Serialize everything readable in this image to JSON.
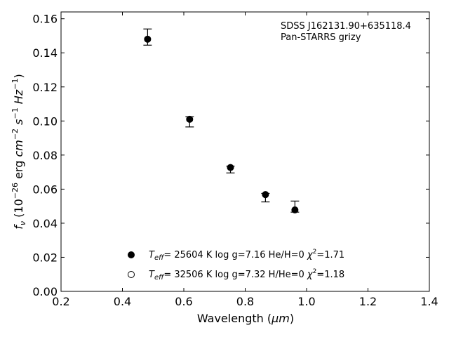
{
  "chart_data": {
    "type": "scatter",
    "xlabel_main": "Wavelength (",
    "xlabel_unit": "μm",
    "xlabel_close": ")",
    "ylabel_parts": {
      "f": "f",
      "nu": "ν",
      "open": " (10",
      "exp1": "−26",
      "mid1": " erg ",
      "cm": "cm",
      "exp2": "−2",
      "sp1": " ",
      "s": "s",
      "exp3": "−1",
      "sp2": " ",
      "hz": "Hz",
      "exp4": "−1",
      "close": ")"
    },
    "xlim": [
      0.2,
      1.4
    ],
    "ylim": [
      0.0,
      0.164
    ],
    "xticks": [
      0.2,
      0.4,
      0.6,
      0.8,
      1.0,
      1.2,
      1.4
    ],
    "xtick_labels": [
      "0.2",
      "0.4",
      "0.6",
      "0.8",
      "1.0",
      "1.2",
      "1.4"
    ],
    "yticks": [
      0.0,
      0.02,
      0.04,
      0.06,
      0.08,
      0.1,
      0.12,
      0.14,
      0.16
    ],
    "ytick_labels": [
      "0.00",
      "0.02",
      "0.04",
      "0.06",
      "0.08",
      "0.10",
      "0.12",
      "0.14",
      "0.16"
    ],
    "grid": false,
    "annotation": [
      "SDSS J162131.90+635118.4",
      "Pan-STARRS grizy"
    ],
    "observed": {
      "x": [
        0.482,
        0.619,
        0.752,
        0.866,
        0.962
      ],
      "y": [
        0.148,
        0.1,
        0.072,
        0.056,
        0.048
      ],
      "yerr_low": [
        0.0035,
        0.0035,
        0.0025,
        0.0035,
        0.0015
      ],
      "yerr_high": [
        0.006,
        0.0025,
        0.0015,
        0.0015,
        0.005
      ]
    },
    "series": [
      {
        "marker": "filled",
        "x": [
          0.482,
          0.619,
          0.752,
          0.866,
          0.962
        ],
        "y": [
          0.148,
          0.101,
          0.0727,
          0.0568,
          0.0478
        ],
        "legend": {
          "t": "T",
          "sub": "eff",
          "rest": "= 25604 K  log g=7.16  He/H=0  ",
          "chi": "χ",
          "sup": "2",
          "val": "=1.71"
        }
      },
      {
        "marker": "open",
        "x": [],
        "y": [],
        "legend": {
          "t": "T",
          "sub": "eff",
          "rest": "= 32506 K  log g=7.32  H/He=0  ",
          "chi": "χ",
          "sup": "2",
          "val": "=1.18"
        }
      }
    ],
    "legend_placement": "lower-center"
  }
}
